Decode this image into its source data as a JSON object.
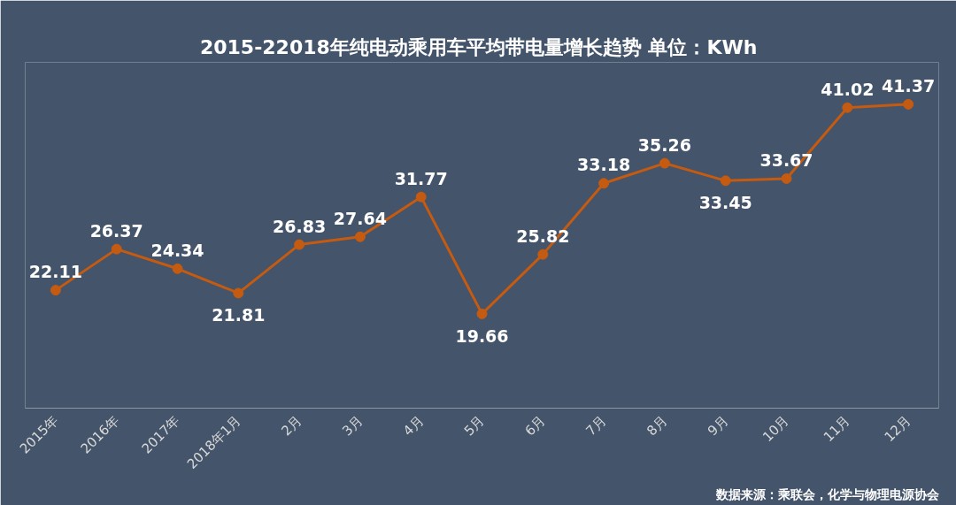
{
  "chart_data": {
    "type": "line",
    "title": "2015-22018年纯电动乘用车平均带电量增长趋势  单位：KWh",
    "categories": [
      "2015年",
      "2016年",
      "2017年",
      "2018年1月",
      "2月",
      "3月",
      "4月",
      "5月",
      "6月",
      "7月",
      "8月",
      "9月",
      "10月",
      "11月",
      "12月"
    ],
    "series": [
      {
        "color": "#c55a11",
        "values": [
          22.11,
          26.37,
          24.34,
          21.81,
          26.83,
          27.64,
          31.77,
          19.66,
          25.82,
          33.18,
          35.26,
          33.45,
          33.67,
          41.02,
          41.37
        ]
      }
    ],
    "data_labels": true,
    "marker": "circle",
    "grid": false,
    "annotations": [
      "数据来源：乘联会，化学与物理电源协会"
    ]
  }
}
